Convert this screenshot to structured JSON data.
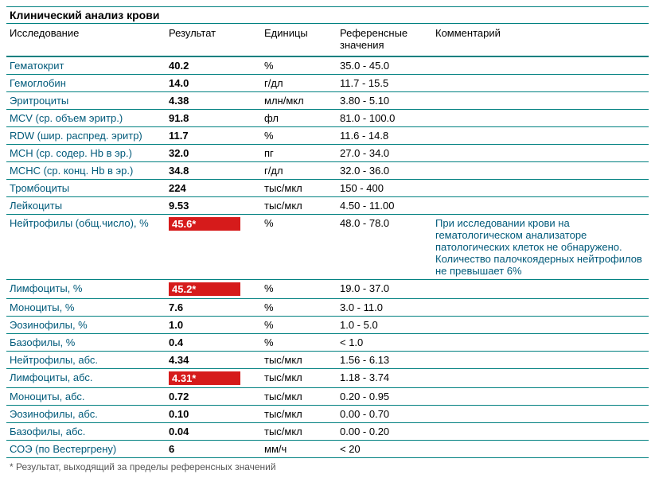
{
  "title": "Клинический анализ крови",
  "columns": {
    "name": "Исследование",
    "result": "Результат",
    "units": "Единицы",
    "reference": "Референсные значения",
    "comment": "Комментарий"
  },
  "rows": [
    {
      "name": "Гематокрит",
      "result": "40.2",
      "units": "%",
      "reference": "35.0 - 45.0",
      "comment": "",
      "flag": false
    },
    {
      "name": "Гемоглобин",
      "result": "14.0",
      "units": "г/дл",
      "reference": "11.7 - 15.5",
      "comment": "",
      "flag": false
    },
    {
      "name": "Эритроциты",
      "result": "4.38",
      "units": "млн/мкл",
      "reference": "3.80 - 5.10",
      "comment": "",
      "flag": false
    },
    {
      "name": "MCV (ср. объем эритр.)",
      "result": "91.8",
      "units": "фл",
      "reference": "81.0 - 100.0",
      "comment": "",
      "flag": false
    },
    {
      "name": "RDW (шир. распред. эритр)",
      "result": "11.7",
      "units": "%",
      "reference": "11.6 - 14.8",
      "comment": "",
      "flag": false
    },
    {
      "name": "MCH (ср. содер. Hb в эр.)",
      "result": "32.0",
      "units": "пг",
      "reference": "27.0 - 34.0",
      "comment": "",
      "flag": false
    },
    {
      "name": "MCHC (ср. конц. Hb в эр.)",
      "result": "34.8",
      "units": "г/дл",
      "reference": "32.0 - 36.0",
      "comment": "",
      "flag": false
    },
    {
      "name": "Тромбоциты",
      "result": "224",
      "units": "тыс/мкл",
      "reference": "150 - 400",
      "comment": "",
      "flag": false
    },
    {
      "name": "Лейкоциты",
      "result": "9.53",
      "units": "тыс/мкл",
      "reference": "4.50 - 11.00",
      "comment": "",
      "flag": false
    },
    {
      "name": "Нейтрофилы (общ.число), %",
      "result": "45.6*",
      "units": "%",
      "reference": "48.0 - 78.0",
      "comment": "При исследовании крови на гематологическом анализаторе патологических клеток не обнаружено. Количество палочкоядерных нейтрофилов не превышает 6%",
      "flag": true
    },
    {
      "name": "Лимфоциты, %",
      "result": "45.2*",
      "units": "%",
      "reference": "19.0 - 37.0",
      "comment": "",
      "flag": true
    },
    {
      "name": "Моноциты, %",
      "result": "7.6",
      "units": "%",
      "reference": "3.0 - 11.0",
      "comment": "",
      "flag": false
    },
    {
      "name": "Эозинофилы, %",
      "result": "1.0",
      "units": "%",
      "reference": "1.0 - 5.0",
      "comment": "",
      "flag": false
    },
    {
      "name": "Базофилы, %",
      "result": "0.4",
      "units": "%",
      "reference": "< 1.0",
      "comment": "",
      "flag": false
    },
    {
      "name": "Нейтрофилы, абс.",
      "result": "4.34",
      "units": "тыс/мкл",
      "reference": "1.56 - 6.13",
      "comment": "",
      "flag": false
    },
    {
      "name": "Лимфоциты, абс.",
      "result": "4.31*",
      "units": "тыс/мкл",
      "reference": "1.18 - 3.74",
      "comment": "",
      "flag": true
    },
    {
      "name": "Моноциты, абс.",
      "result": "0.72",
      "units": "тыс/мкл",
      "reference": "0.20 - 0.95",
      "comment": "",
      "flag": false
    },
    {
      "name": "Эозинофилы, абс.",
      "result": "0.10",
      "units": "тыс/мкл",
      "reference": "0.00 - 0.70",
      "comment": "",
      "flag": false
    },
    {
      "name": "Базофилы, абс.",
      "result": "0.04",
      "units": "тыс/мкл",
      "reference": "0.00 - 0.20",
      "comment": "",
      "flag": false
    },
    {
      "name": "СОЭ (по Вестергрену)",
      "result": "6",
      "units": "мм/ч",
      "reference": "< 20",
      "comment": "",
      "flag": false
    }
  ],
  "footnote": "* Результат, выходящий за пределы референсных значений",
  "colors": {
    "teal_border": "#008080",
    "link_text": "#005a7a",
    "flag_bg": "#d61b1b",
    "flag_fg": "#ffffff",
    "background": "#ffffff"
  }
}
